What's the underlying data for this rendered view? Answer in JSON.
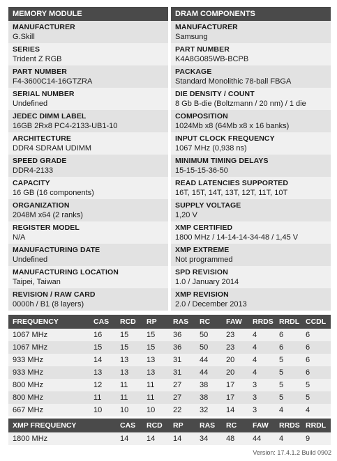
{
  "memory_module": {
    "title": "MEMORY MODULE",
    "fields": [
      {
        "label": "MANUFACTURER",
        "value": "G.Skill"
      },
      {
        "label": "SERIES",
        "value": "Trident Z RGB"
      },
      {
        "label": "PART NUMBER",
        "value": "F4-3600C14-16GTZRA"
      },
      {
        "label": "SERIAL NUMBER",
        "value": "Undefined"
      },
      {
        "label": "JEDEC DIMM LABEL",
        "value": "16GB 2Rx8 PC4-2133-UB1-10"
      },
      {
        "label": "ARCHITECTURE",
        "value": "DDR4 SDRAM UDIMM"
      },
      {
        "label": "SPEED GRADE",
        "value": "DDR4-2133"
      },
      {
        "label": "CAPACITY",
        "value": "16 GB (16 components)"
      },
      {
        "label": "ORGANIZATION",
        "value": "2048M x64 (2 ranks)"
      },
      {
        "label": "REGISTER MODEL",
        "value": "N/A"
      },
      {
        "label": "MANUFACTURING DATE",
        "value": "Undefined"
      },
      {
        "label": "MANUFACTURING LOCATION",
        "value": "Taipei, Taiwan"
      },
      {
        "label": "REVISION / RAW CARD",
        "value": "0000h / B1 (8 layers)"
      }
    ]
  },
  "dram_components": {
    "title": "DRAM COMPONENTS",
    "fields": [
      {
        "label": "MANUFACTURER",
        "value": "Samsung"
      },
      {
        "label": "PART NUMBER",
        "value": "K4A8G085WB-BCPB"
      },
      {
        "label": "PACKAGE",
        "value": "Standard Monolithic 78-ball FBGA"
      },
      {
        "label": "DIE DENSITY / COUNT",
        "value": "8 Gb B-die (Boltzmann / 20 nm) / 1 die"
      },
      {
        "label": "COMPOSITION",
        "value": "1024Mb x8 (64Mb x8 x 16 banks)"
      },
      {
        "label": "INPUT CLOCK FREQUENCY",
        "value": "1067 MHz (0,938 ns)"
      },
      {
        "label": "MINIMUM TIMING DELAYS",
        "value": "15-15-15-36-50"
      },
      {
        "label": "READ LATENCIES SUPPORTED",
        "value": "16T, 15T, 14T, 13T, 12T, 11T, 10T"
      },
      {
        "label": "SUPPLY VOLTAGE",
        "value": "1,20 V"
      },
      {
        "label": "XMP CERTIFIED",
        "value": "1800 MHz / 14-14-14-34-48 / 1,45 V"
      },
      {
        "label": "XMP EXTREME",
        "value": "Not programmed"
      },
      {
        "label": "SPD REVISION",
        "value": "1.0 / January 2014"
      },
      {
        "label": "XMP REVISION",
        "value": "2.0 / December 2013"
      }
    ]
  },
  "frequency_table": {
    "headers": [
      "FREQUENCY",
      "CAS",
      "RCD",
      "RP",
      "RAS",
      "RC",
      "FAW",
      "RRDS",
      "RRDL",
      "CCDL"
    ],
    "rows": [
      [
        "1067 MHz",
        "16",
        "15",
        "15",
        "36",
        "50",
        "23",
        "4",
        "6",
        "6"
      ],
      [
        "1067 MHz",
        "15",
        "15",
        "15",
        "36",
        "50",
        "23",
        "4",
        "6",
        "6"
      ],
      [
        "933 MHz",
        "14",
        "13",
        "13",
        "31",
        "44",
        "20",
        "4",
        "5",
        "6"
      ],
      [
        "933 MHz",
        "13",
        "13",
        "13",
        "31",
        "44",
        "20",
        "4",
        "5",
        "6"
      ],
      [
        "800 MHz",
        "12",
        "11",
        "11",
        "27",
        "38",
        "17",
        "3",
        "5",
        "5"
      ],
      [
        "800 MHz",
        "11",
        "11",
        "11",
        "27",
        "38",
        "17",
        "3",
        "5",
        "5"
      ],
      [
        "667 MHz",
        "10",
        "10",
        "10",
        "22",
        "32",
        "14",
        "3",
        "4",
        "4"
      ]
    ]
  },
  "xmp_table": {
    "headers": [
      "XMP FREQUENCY",
      "CAS",
      "RCD",
      "RP",
      "RAS",
      "RC",
      "FAW",
      "RRDS",
      "RRDL"
    ],
    "rows": [
      [
        "1800 MHz",
        "14",
        "14",
        "14",
        "34",
        "48",
        "44",
        "4",
        "9"
      ]
    ]
  },
  "footer": {
    "version": "Version: 17.4.1.2 Build 0902"
  }
}
